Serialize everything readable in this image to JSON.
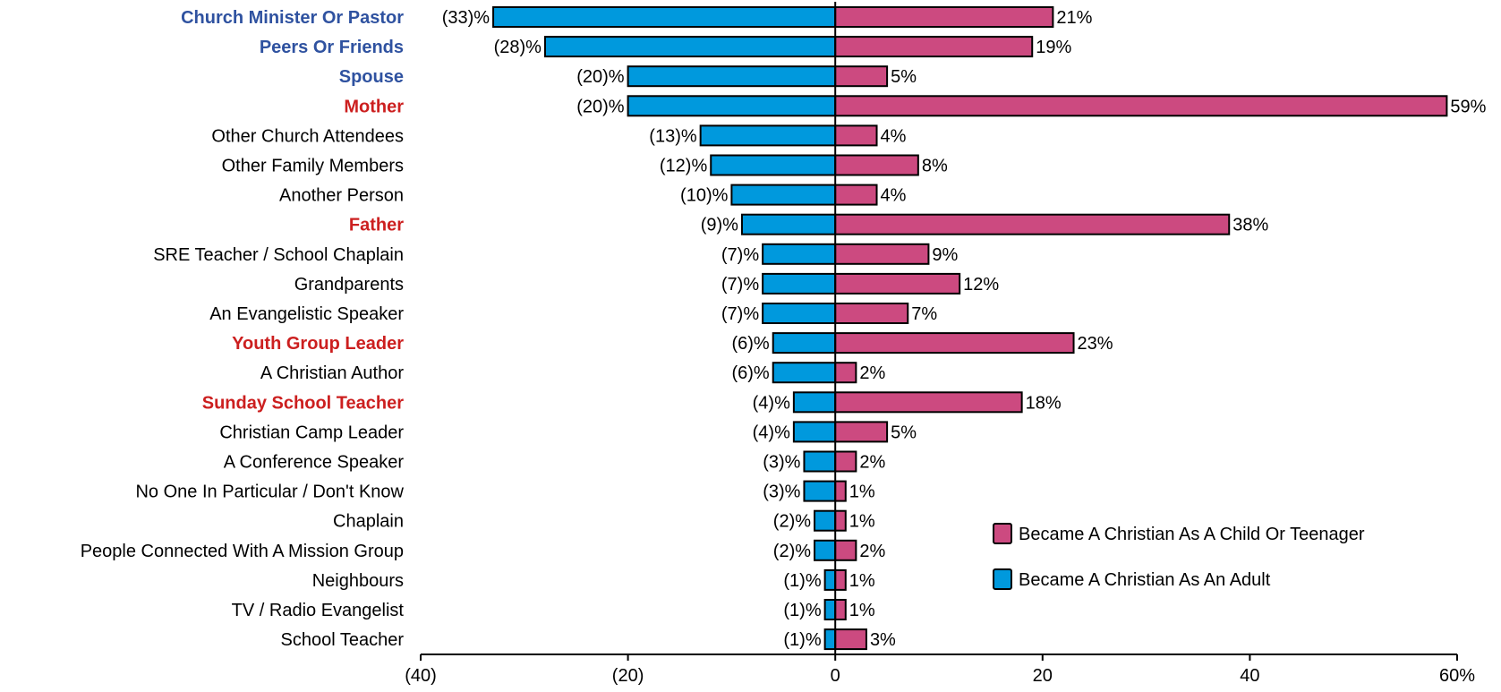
{
  "chart_data": {
    "type": "bar",
    "orientation": "horizontal",
    "title": "",
    "xlabel": "",
    "ylabel": "",
    "xlim": [
      -40,
      60
    ],
    "x_ticks": [
      -40,
      -20,
      0,
      20,
      40,
      60
    ],
    "x_tick_labels": [
      "(40)",
      "(20)",
      "0",
      "20",
      "40",
      "60%"
    ],
    "grid": false,
    "legend_position": "bottom-right",
    "categories": [
      "Church Minister Or Pastor",
      "Peers Or Friends",
      "Spouse",
      "Mother",
      "Other Church Attendees",
      "Other Family Members",
      "Another Person",
      "Father",
      "SRE Teacher / School Chaplain",
      "Grandparents",
      "An Evangelistic Speaker",
      "Youth Group Leader",
      "A Christian Author",
      "Sunday School Teacher",
      "Christian Camp Leader",
      "A Conference Speaker",
      "No One In Particular / Don't Know",
      "Chaplain",
      "People Connected With A Mission Group",
      "Neighbours",
      "TV / Radio Evangelist",
      "School Teacher"
    ],
    "category_highlight": [
      "blue",
      "blue",
      "blue",
      "red",
      "none",
      "none",
      "none",
      "red",
      "none",
      "none",
      "none",
      "red",
      "none",
      "red",
      "none",
      "none",
      "none",
      "none",
      "none",
      "none",
      "none",
      "none"
    ],
    "series": [
      {
        "name": "Became A Christian As An Adult",
        "color": "#0099dd",
        "values": [
          -33,
          -28,
          -20,
          -20,
          -13,
          -12,
          -10,
          -9,
          -7,
          -7,
          -7,
          -6,
          -6,
          -4,
          -4,
          -3,
          -3,
          -2,
          -2,
          -1,
          -1,
          -1
        ],
        "labels": [
          "(33)%",
          "(28)%",
          "(20)%",
          "(20)%",
          "(13)%",
          "(12)%",
          "(10)%",
          "(9)%",
          "(7)%",
          "(7)%",
          "(7)%",
          "(6)%",
          "(6)%",
          "(4)%",
          "(4)%",
          "(3)%",
          "(3)%",
          "(2)%",
          "(2)%",
          "(1)%",
          "(1)%",
          "(1)%"
        ]
      },
      {
        "name": "Became A Christian As A Child Or Teenager",
        "color": "#cc4a80",
        "values": [
          21,
          19,
          5,
          59,
          4,
          8,
          4,
          38,
          9,
          12,
          7,
          23,
          2,
          18,
          5,
          2,
          1,
          1,
          2,
          1,
          1,
          3
        ],
        "labels": [
          "21%",
          "19%",
          "5%",
          "59%",
          "4%",
          "8%",
          "4%",
          "38%",
          "9%",
          "12%",
          "7%",
          "23%",
          "2%",
          "18%",
          "5%",
          "2%",
          "1%",
          "1%",
          "2%",
          "1%",
          "1%",
          "3%"
        ]
      }
    ],
    "legend": [
      {
        "name": "Became A Christian As A Child Or Teenager",
        "color": "#cc4a80"
      },
      {
        "name": "Became A Christian As An Adult",
        "color": "#0099dd"
      }
    ],
    "colors": {
      "highlight_blue": "#2f52a0",
      "highlight_red": "#cc1f1f",
      "label_default": "#000000"
    }
  }
}
